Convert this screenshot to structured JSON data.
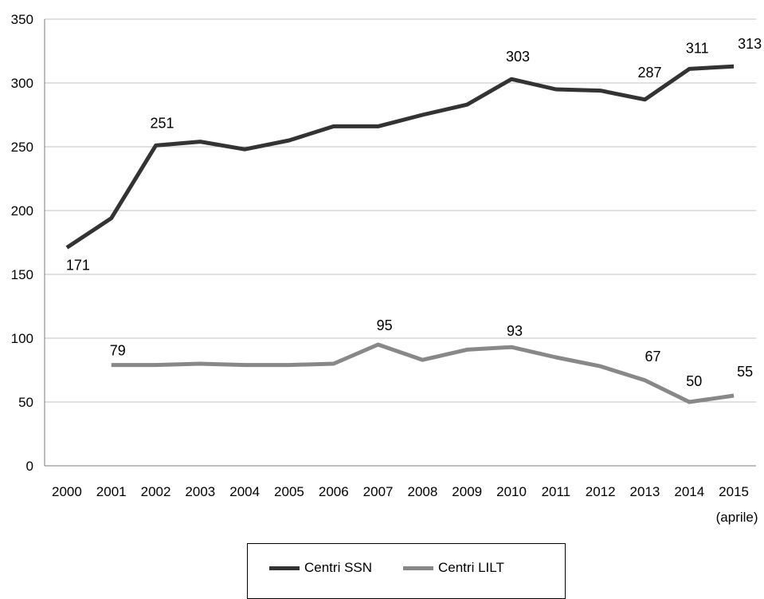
{
  "chart_data": {
    "type": "line",
    "categories": [
      "2000",
      "2001",
      "2002",
      "2003",
      "2004",
      "2005",
      "2006",
      "2007",
      "2008",
      "2009",
      "2010",
      "2011",
      "2012",
      "2013",
      "2014",
      "2015"
    ],
    "category_sublabels": {
      "2015": "(aprile)"
    },
    "ylim": [
      0,
      350
    ],
    "yticks": [
      0,
      50,
      100,
      150,
      200,
      250,
      300,
      350
    ],
    "grid": true,
    "legend_position": "bottom",
    "series": [
      {
        "name": "Centri SSN",
        "color": "#333333",
        "values": [
          171,
          194,
          251,
          254,
          248,
          255,
          266,
          266,
          275,
          283,
          303,
          295,
          294,
          287,
          311,
          313
        ],
        "labeled_points": {
          "2000": "171",
          "2002": "251",
          "2010": "303",
          "2013": "287",
          "2014": "311",
          "2015": "313"
        }
      },
      {
        "name": "Centri LILT",
        "color": "#888888",
        "values": [
          null,
          79,
          79,
          80,
          79,
          79,
          80,
          95,
          83,
          91,
          93,
          85,
          78,
          67,
          50,
          55
        ],
        "labeled_points": {
          "2001": "79",
          "2007": "95",
          "2010": "93",
          "2013": "67",
          "2014": "50",
          "2015": "55"
        }
      }
    ]
  }
}
